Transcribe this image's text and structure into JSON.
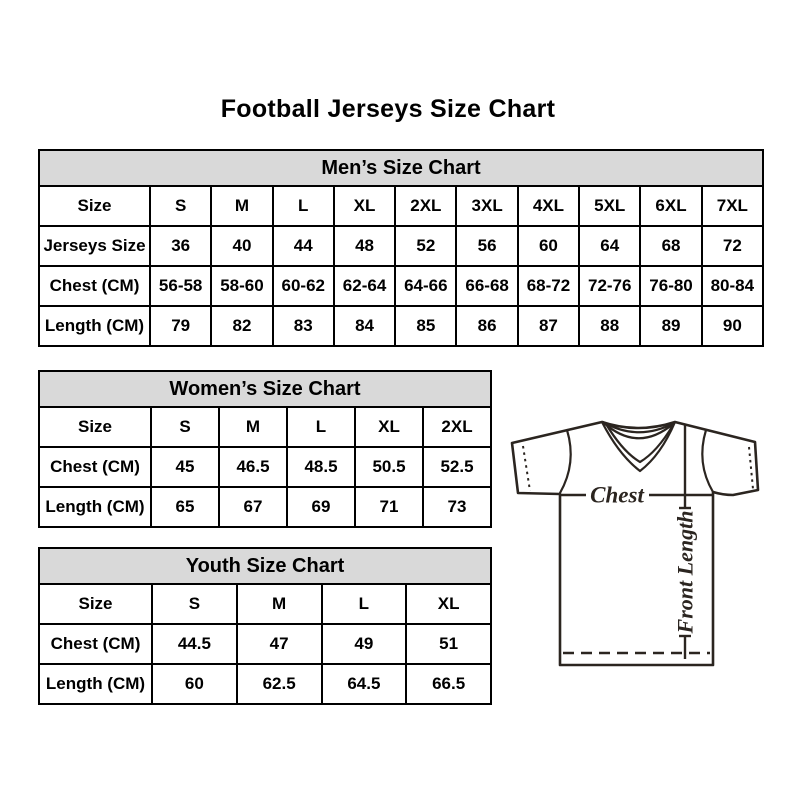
{
  "page_title": "Football Jerseys Size Chart",
  "chart_data": [
    {
      "type": "table",
      "id": "men",
      "title": "Men’s Size Chart",
      "rows": [
        [
          "Size",
          "S",
          "M",
          "L",
          "XL",
          "2XL",
          "3XL",
          "4XL",
          "5XL",
          "6XL",
          "7XL"
        ],
        [
          "Jerseys Size",
          "36",
          "40",
          "44",
          "48",
          "52",
          "56",
          "60",
          "64",
          "68",
          "72"
        ],
        [
          "Chest (CM)",
          "56-58",
          "58-60",
          "60-62",
          "62-64",
          "64-66",
          "66-68",
          "68-72",
          "72-76",
          "76-80",
          "80-84"
        ],
        [
          "Length (CM)",
          "79",
          "82",
          "83",
          "84",
          "85",
          "86",
          "87",
          "88",
          "89",
          "90"
        ]
      ]
    },
    {
      "type": "table",
      "id": "women",
      "title": "Women’s Size Chart",
      "rows": [
        [
          "Size",
          "S",
          "M",
          "L",
          "XL",
          "2XL"
        ],
        [
          "Chest (CM)",
          "45",
          "46.5",
          "48.5",
          "50.5",
          "52.5"
        ],
        [
          "Length (CM)",
          "65",
          "67",
          "69",
          "71",
          "73"
        ]
      ]
    },
    {
      "type": "table",
      "id": "youth",
      "title": "Youth Size Chart",
      "rows": [
        [
          "Size",
          "S",
          "M",
          "L",
          "XL"
        ],
        [
          "Chest (CM)",
          "44.5",
          "47",
          "49",
          "51"
        ],
        [
          "Length (CM)",
          "60",
          "62.5",
          "64.5",
          "66.5"
        ]
      ]
    }
  ],
  "diagram": {
    "chest_label": "Chest",
    "front_length_label": "Front Length"
  },
  "colors": {
    "header_bg": "#D9D9D9",
    "table_border": "#000000",
    "text": "#000000",
    "diagram_line": "#2B2520"
  }
}
